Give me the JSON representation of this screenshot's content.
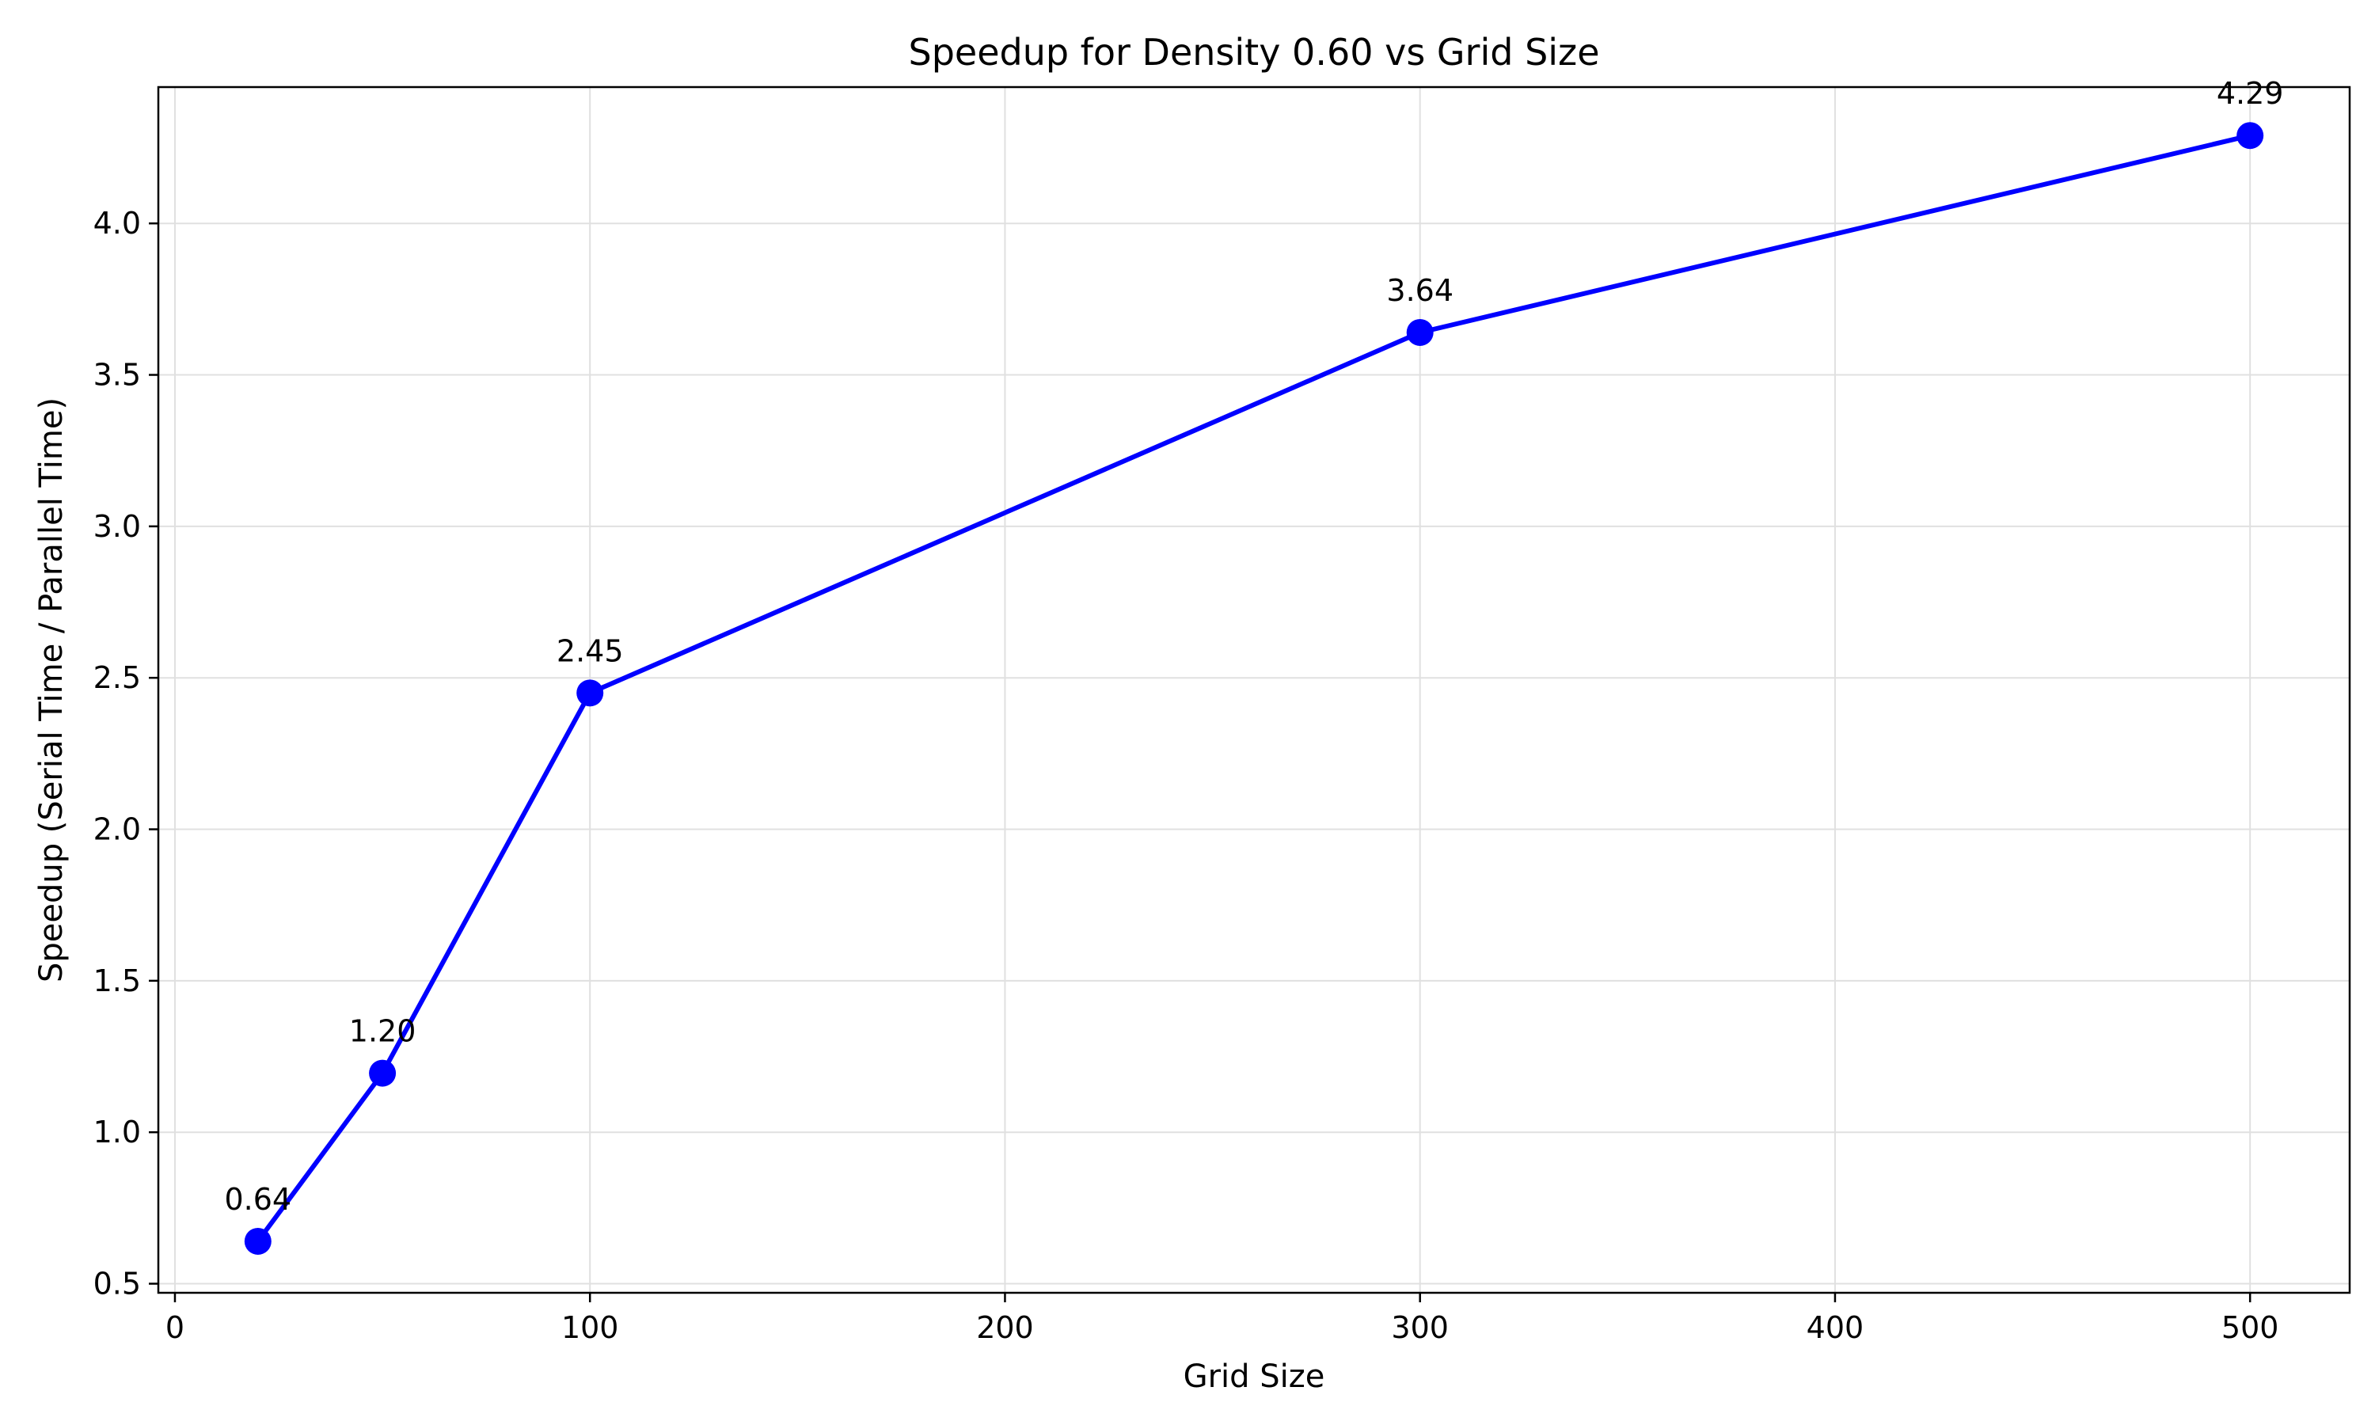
{
  "chart_data": {
    "type": "line",
    "title": "Speedup for Density 0.60 vs Grid Size",
    "xlabel": "Grid Size",
    "ylabel": "Speedup (Serial Time / Parallel Time)",
    "xlim": [
      -4,
      524
    ],
    "ylim": [
      0.47,
      4.45
    ],
    "xticks": [
      0,
      100,
      200,
      300,
      400,
      500
    ],
    "yticks": [
      0.5,
      1.0,
      1.5,
      2.0,
      2.5,
      3.0,
      3.5,
      4.0
    ],
    "xtick_labels": [
      "0",
      "100",
      "200",
      "300",
      "400",
      "500"
    ],
    "ytick_labels": [
      "0.5",
      "1.0",
      "1.5",
      "2.0",
      "2.5",
      "3.0",
      "3.5",
      "4.0"
    ],
    "grid": true,
    "series": [
      {
        "color": "#0000ff",
        "x": [
          20,
          50,
          100,
          300,
          500
        ],
        "y": [
          0.64,
          1.195,
          2.45,
          3.64,
          4.29
        ],
        "labels": [
          "0.64",
          "1.20",
          "2.45",
          "3.64",
          "4.29"
        ]
      }
    ]
  }
}
